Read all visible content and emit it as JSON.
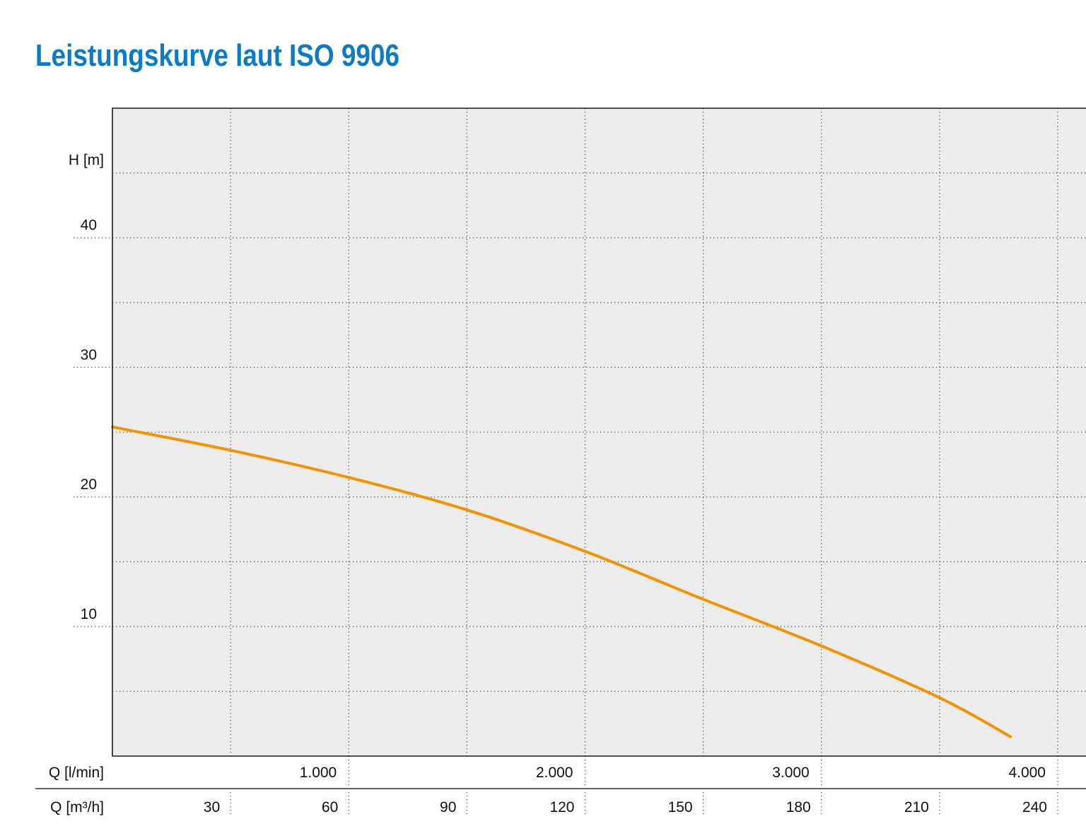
{
  "chart_data": {
    "type": "line",
    "title": "Leistungskurve laut ISO 9906",
    "ylabel": "H [m]",
    "xlabel": "Q [l/min]",
    "x2label": "Q [m³/h]",
    "xlim": [
      0,
      4000
    ],
    "x2lim": [
      0,
      240
    ],
    "ylim": [
      0,
      50
    ],
    "grid": true,
    "x_grid_step": 500,
    "y_grid_step": 5,
    "y_ticks": [
      10,
      20,
      30,
      40
    ],
    "y_tick_labels": [
      "10",
      "20",
      "30",
      "40"
    ],
    "x_ticks": [
      1000,
      2000,
      3000,
      4000
    ],
    "x_tick_labels": [
      "1.000",
      "2.000",
      "3.000",
      "4.000"
    ],
    "x2_ticks": [
      30,
      60,
      90,
      120,
      150,
      180,
      210,
      240
    ],
    "x2_tick_labels": [
      "30",
      "60",
      "90",
      "120",
      "150",
      "180",
      "210",
      "240"
    ],
    "series": [
      {
        "x": [
          0,
          500,
          1000,
          1500,
          2000,
          2500,
          3000,
          3500,
          3800
        ],
        "y": [
          25.4,
          23.6,
          21.5,
          19.0,
          15.8,
          12.1,
          8.5,
          4.5,
          1.5
        ]
      }
    ]
  },
  "colors": {
    "title": "#0a7bc4",
    "curve": "#f39200",
    "plot_background": "#ececec",
    "axis": "#1a1a1a",
    "grid": "#555555",
    "text": "#111111"
  }
}
